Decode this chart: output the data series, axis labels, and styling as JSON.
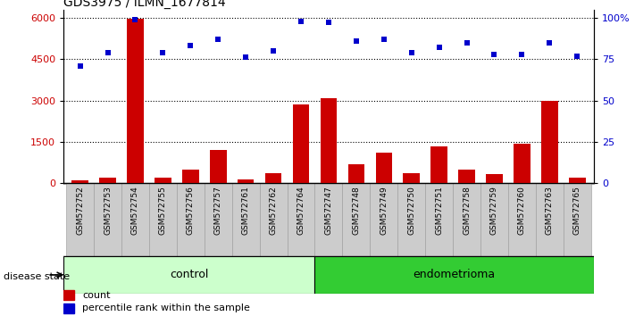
{
  "title": "GDS3975 / ILMN_1677814",
  "samples": [
    "GSM572752",
    "GSM572753",
    "GSM572754",
    "GSM572755",
    "GSM572756",
    "GSM572757",
    "GSM572761",
    "GSM572762",
    "GSM572764",
    "GSM572747",
    "GSM572748",
    "GSM572749",
    "GSM572750",
    "GSM572751",
    "GSM572758",
    "GSM572759",
    "GSM572760",
    "GSM572763",
    "GSM572765"
  ],
  "counts": [
    100,
    200,
    5950,
    200,
    500,
    1200,
    150,
    380,
    2850,
    3100,
    700,
    1100,
    380,
    1350,
    480,
    320,
    1430,
    3000,
    200
  ],
  "percentiles": [
    71,
    79,
    99,
    79,
    83,
    87,
    76,
    80,
    98,
    97,
    86,
    87,
    79,
    82,
    85,
    78,
    78,
    85,
    77
  ],
  "control_count": 9,
  "endometrioma_count": 10,
  "ylim_left": [
    0,
    6300
  ],
  "ylim_right": [
    0,
    105
  ],
  "yticks_left": [
    0,
    1500,
    3000,
    4500,
    6000
  ],
  "yticks_right": [
    0,
    25,
    50,
    75,
    100
  ],
  "yticklabels_right": [
    "0",
    "25",
    "50",
    "75",
    "100%"
  ],
  "bar_color": "#cc0000",
  "dot_color": "#0000cc",
  "control_bg": "#ccffcc",
  "endometrioma_bg": "#33cc33",
  "xlabel_bg": "#cccccc",
  "grid_color": "black",
  "legend_count_label": "count",
  "legend_pct_label": "percentile rank within the sample",
  "disease_state_label": "disease state",
  "control_label": "control",
  "endometrioma_label": "endometrioma",
  "bg_white": "#ffffff"
}
